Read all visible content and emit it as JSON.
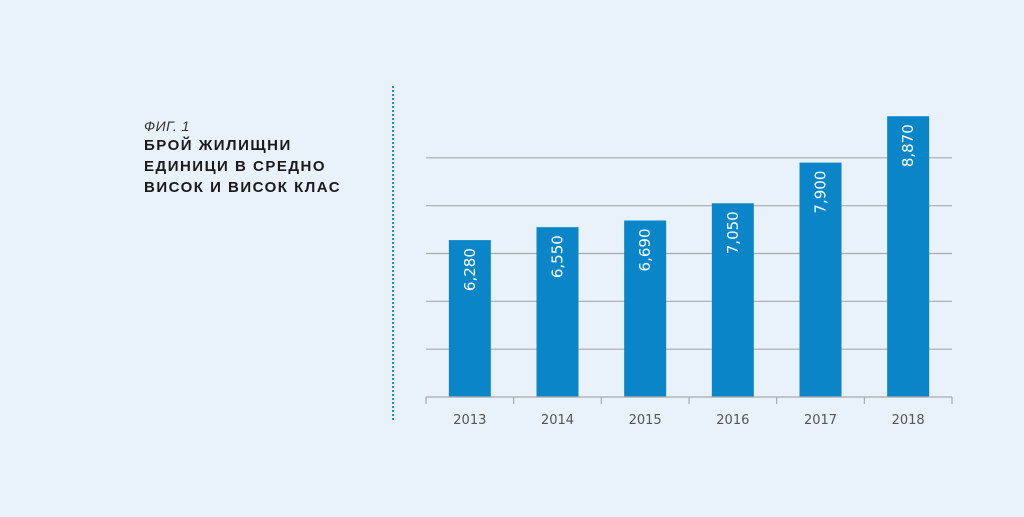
{
  "caption": {
    "fig_label": "ФИГ. 1",
    "title_lines": [
      "БРОЙ ЖИЛИЩНИ",
      "ЕДИНИЦИ В СРЕДНО",
      "ВИСОК И ВИСОК КЛАС"
    ]
  },
  "colors": {
    "background": "#e9f1fa",
    "bar": "#0a86c8",
    "gridline": "#a7abb0",
    "divider": "#1e8fc9"
  },
  "chart_data": {
    "type": "bar",
    "title": "БРОЙ ЖИЛИЩНИ ЕДИНИЦИ В СРЕДНО ВИСОК И ВИСОК КЛАС",
    "categories": [
      "2013",
      "2014",
      "2015",
      "2016",
      "2017",
      "2018"
    ],
    "values": [
      6280,
      6550,
      6690,
      7050,
      7900,
      8870
    ],
    "value_labels": [
      "6,280",
      "6,550",
      "6,690",
      "7,050",
      "7,900",
      "8,870"
    ],
    "xlabel": "",
    "ylabel": "",
    "ylim": [
      3000,
      9000
    ],
    "y_ticks_labeled": false,
    "grid": true,
    "legend": "none"
  }
}
